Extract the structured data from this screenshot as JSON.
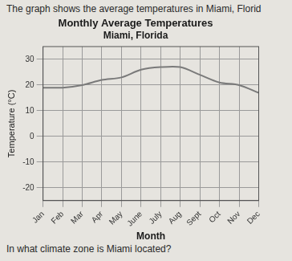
{
  "intro": "The graph shows the average temperatures in Miami, Florid",
  "question": "In what climate zone is Miami located?",
  "chart_data": {
    "type": "line",
    "title": "Monthly Average Temperatures",
    "subtitle": "Miami, Florida",
    "x_label": "Month",
    "y_label": "Temperature (°C)",
    "categories": [
      "Jan",
      "Feb",
      "Mar",
      "Apr",
      "May",
      "June",
      "July",
      "Aug",
      "Sept",
      "Oct",
      "Nov",
      "Dec"
    ],
    "values": [
      19,
      19,
      20,
      22,
      23,
      26,
      27,
      27,
      24,
      21,
      20,
      17
    ],
    "color": "#7a7a7a",
    "marker": "none",
    "ylim": [
      -25,
      35
    ],
    "yticks": [
      -20,
      -10,
      0,
      10,
      20,
      30
    ],
    "grid": true
  }
}
